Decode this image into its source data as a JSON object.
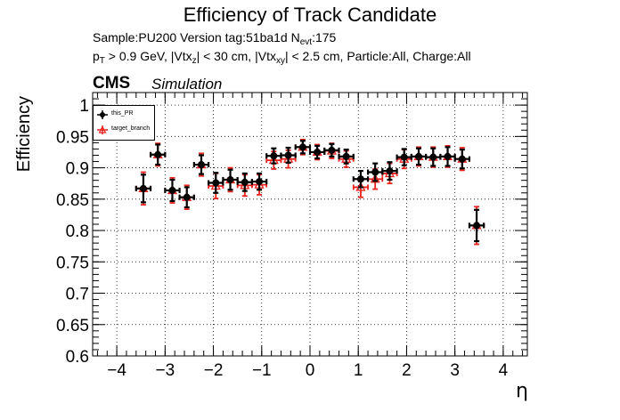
{
  "header": {
    "title": "Efficiency of Track Candidate",
    "sample_label": "Sample:PU200   Version tag:51ba1d  N",
    "nevt_sub": "evt",
    "nevt_value": ":175",
    "cut_p": "p",
    "cut_p_sub": "T",
    "cut_a": " > 0.9 GeV, |Vtx",
    "cut_a_sub": "z",
    "cut_b": "| < 30 cm, |Vtx",
    "cut_b_sub": "xy",
    "cut_c": "| < 2.5 cm, Particle:All, Charge:All",
    "cms_label": "CMS",
    "sim_label": "Simulation"
  },
  "colors": {
    "this_pr": "#000000",
    "target_branch": "#e8221c",
    "grid": "#000000"
  },
  "chart_data": {
    "type": "scatter",
    "title": "Efficiency of Track Candidate",
    "xlabel": "η",
    "ylabel": "Efficiency",
    "xlim": [
      -4.5,
      4.5
    ],
    "ylim": [
      0.6,
      1.02
    ],
    "grid": true,
    "legend_position": "top-left",
    "x_ticks": [
      "−4",
      "−3",
      "−2",
      "−1",
      "0",
      "1",
      "2",
      "3",
      "4"
    ],
    "x_tick_values": [
      -4,
      -3,
      -2,
      -1,
      0,
      1,
      2,
      3,
      4
    ],
    "y_ticks": [
      "0.6",
      "0.65",
      "0.7",
      "0.75",
      "0.8",
      "0.85",
      "0.9",
      "0.95",
      "1"
    ],
    "y_tick_values": [
      0.6,
      0.65,
      0.7,
      0.75,
      0.8,
      0.85,
      0.9,
      0.95,
      1.0
    ],
    "x": [
      -3.45,
      -3.15,
      -2.85,
      -2.55,
      -2.25,
      -1.95,
      -1.65,
      -1.35,
      -1.05,
      -0.75,
      -0.45,
      -0.15,
      0.15,
      0.45,
      0.75,
      1.05,
      1.35,
      1.65,
      1.95,
      2.25,
      2.55,
      2.85,
      3.15,
      3.45
    ],
    "x_half_width": 0.15,
    "series": [
      {
        "name": "this_PR",
        "values": [
          0.867,
          0.921,
          0.864,
          0.853,
          0.905,
          0.876,
          0.881,
          0.877,
          0.878,
          0.919,
          0.92,
          0.933,
          0.925,
          0.928,
          0.918,
          0.882,
          0.893,
          0.895,
          0.917,
          0.918,
          0.917,
          0.918,
          0.914,
          0.808
        ],
        "errors": [
          0.022,
          0.016,
          0.017,
          0.016,
          0.015,
          0.016,
          0.016,
          0.014,
          0.013,
          0.012,
          0.012,
          0.01,
          0.01,
          0.01,
          0.011,
          0.013,
          0.014,
          0.014,
          0.013,
          0.013,
          0.014,
          0.015,
          0.015,
          0.025
        ]
      },
      {
        "name": "target_branch",
        "values": [
          0.867,
          0.921,
          0.864,
          0.853,
          0.905,
          0.871,
          0.881,
          0.872,
          0.873,
          0.912,
          0.914,
          0.933,
          0.925,
          0.927,
          0.914,
          0.869,
          0.882,
          0.891,
          0.914,
          0.918,
          0.917,
          0.918,
          0.914,
          0.808
        ],
        "errors": [
          0.026,
          0.018,
          0.02,
          0.019,
          0.018,
          0.02,
          0.019,
          0.017,
          0.016,
          0.014,
          0.014,
          0.012,
          0.012,
          0.012,
          0.013,
          0.016,
          0.016,
          0.016,
          0.015,
          0.015,
          0.016,
          0.017,
          0.018,
          0.03
        ]
      }
    ]
  }
}
